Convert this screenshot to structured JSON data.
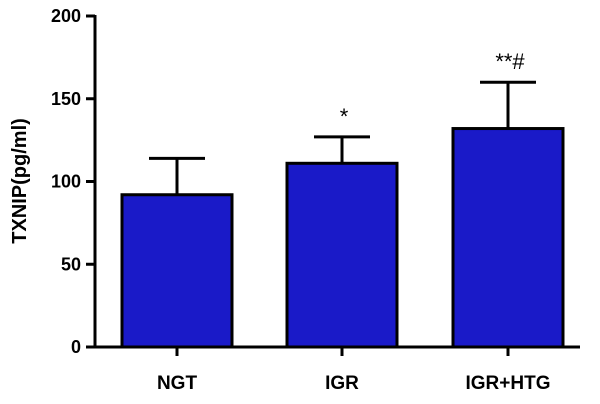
{
  "chart_data": {
    "type": "bar",
    "title": "",
    "xlabel": "",
    "ylabel": "TXNIP(pg/ml)",
    "ylim": [
      0,
      200
    ],
    "yticks": [
      "0",
      "50",
      "100",
      "150",
      "200"
    ],
    "categories": [
      "NGT",
      "IGR",
      "IGR+HTG"
    ],
    "values": [
      92,
      111,
      132
    ],
    "error_upper": [
      114,
      127,
      160
    ],
    "annotations": [
      "",
      "*",
      "**#"
    ],
    "bar_color": "#1a1ac8",
    "grid": false,
    "legend": "none"
  }
}
